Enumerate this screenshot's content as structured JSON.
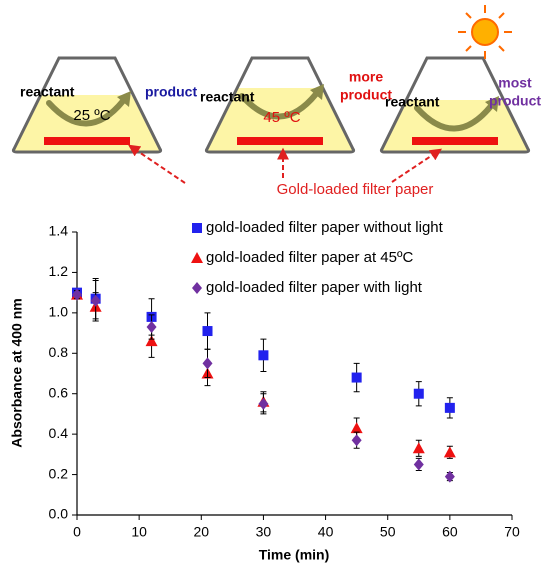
{
  "diagram": {
    "flasks": [
      {
        "left": "reactant",
        "right": [
          "product"
        ],
        "temperature": "25 ºC"
      },
      {
        "left": "reactant",
        "right": [
          "more",
          "product"
        ],
        "temperature": "45 ºC"
      },
      {
        "left": "reactant",
        "right": [
          "most",
          "product"
        ]
      }
    ],
    "label": "Gold-loaded filter paper"
  },
  "chart_data": {
    "type": "scatter",
    "x_label": "Time (min)",
    "y_label": "Absorbance at 400 nm",
    "x": [
      0,
      3,
      12,
      21,
      30,
      45,
      55,
      60
    ],
    "series": [
      {
        "name": "gold-loaded filter paper without light",
        "color": "#2222ee",
        "marker": "square",
        "values": [
          1.1,
          1.07,
          0.98,
          0.91,
          0.79,
          0.68,
          0.6,
          0.53
        ],
        "errors": [
          0.02,
          0.1,
          0.09,
          0.09,
          0.08,
          0.07,
          0.06,
          0.05
        ]
      },
      {
        "name": "gold-loaded filter paper at 45ºC",
        "color": "#ee1111",
        "marker": "triangle",
        "values": [
          1.09,
          1.03,
          0.86,
          0.7,
          0.56,
          0.43,
          0.33,
          0.31
        ],
        "errors": [
          0.02,
          0.07,
          0.08,
          0.06,
          0.05,
          0.05,
          0.04,
          0.03
        ]
      },
      {
        "name": "gold-loaded filter paper with light",
        "color": "#7030a0",
        "marker": "diamond",
        "values": [
          1.09,
          1.06,
          0.93,
          0.75,
          0.55,
          0.37,
          0.25,
          0.19
        ],
        "errors": [
          0.02,
          0.1,
          0.06,
          0.07,
          0.05,
          0.04,
          0.03,
          0.02
        ]
      }
    ],
    "xlim": [
      0,
      70
    ],
    "xticks": [
      0,
      10,
      20,
      30,
      40,
      50,
      60,
      70
    ],
    "ylim": [
      0,
      1.4
    ],
    "yticks": [
      {
        "value": 0,
        "label": "0.0"
      },
      0.2,
      0.4,
      0.6,
      0.8,
      {
        "value": 1,
        "label": "1.0"
      },
      1.2,
      1.4
    ],
    "legend": "upper-right"
  }
}
